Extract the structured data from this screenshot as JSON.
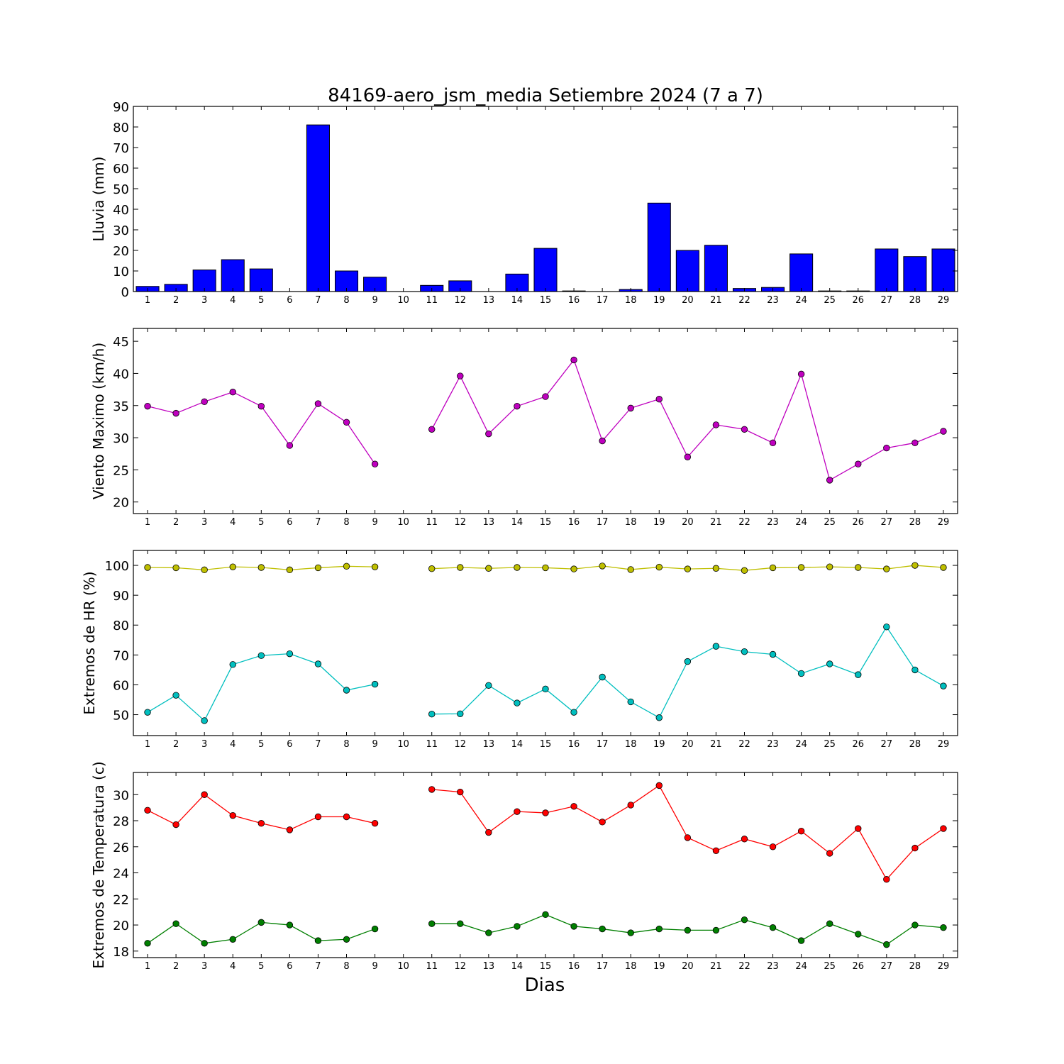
{
  "chart_data": {
    "title": "84169-aero_jsm_media Setiembre 2024  (7 a 7)",
    "xlabel": "Dias",
    "days": [
      1,
      2,
      3,
      4,
      5,
      6,
      7,
      8,
      9,
      10,
      11,
      12,
      13,
      14,
      15,
      16,
      17,
      18,
      19,
      20,
      21,
      22,
      23,
      24,
      25,
      26,
      27,
      28,
      29
    ],
    "day_labels": [
      "1",
      "2",
      "3",
      "4",
      "5",
      "6",
      "7",
      "8",
      "9",
      "10",
      "11",
      "12",
      "13",
      "14",
      "15",
      "16",
      "17",
      "18",
      "19",
      "20",
      "21",
      "22",
      "23",
      "24",
      "25",
      "26",
      "27",
      "28",
      "29"
    ],
    "panels": [
      {
        "type": "bar",
        "ylabel": "Lluvia (mm)",
        "ylim": [
          0,
          90
        ],
        "yticks": [
          0,
          10,
          20,
          30,
          40,
          50,
          60,
          70,
          80,
          90
        ],
        "series": [
          {
            "color": "#0000ff",
            "values": [
              2.5,
              3.5,
              10.5,
              15.5,
              11,
              0,
              81,
              10,
              7,
              0,
              3,
              5.2,
              0,
              8.5,
              21,
              0.3,
              0,
              1,
              43,
              20,
              22.5,
              1.5,
              2,
              18.3,
              0.3,
              0.3,
              20.7,
              17,
              20.7
            ]
          }
        ]
      },
      {
        "type": "line",
        "ylabel": "Viento Maximo (km/h)",
        "ylim": [
          18.2,
          47
        ],
        "yticks": [
          20,
          25,
          30,
          35,
          40,
          45
        ],
        "series": [
          {
            "color": "#bf00bf",
            "values": [
              34.9,
              33.8,
              35.6,
              37.1,
              34.9,
              28.8,
              35.3,
              32.4,
              25.9,
              null,
              31.3,
              39.6,
              30.6,
              34.9,
              36.4,
              42.1,
              29.5,
              34.6,
              36.0,
              27.0,
              32.0,
              31.3,
              29.2,
              39.9,
              23.4,
              25.9,
              28.4,
              29.2,
              31.0
            ]
          }
        ]
      },
      {
        "type": "line",
        "ylabel": "Extremos de HR (%)",
        "ylim": [
          43,
          105
        ],
        "yticks": [
          50,
          60,
          70,
          80,
          90,
          100
        ],
        "series": [
          {
            "color": "#bfbf00",
            "values": [
              99.3,
              99.2,
              98.5,
              99.5,
              99.3,
              98.5,
              99.2,
              99.7,
              99.5,
              null,
              98.9,
              99.3,
              99.0,
              99.3,
              99.2,
              98.8,
              99.8,
              98.6,
              99.4,
              98.8,
              99.0,
              98.3,
              99.2,
              99.3,
              99.5,
              99.3,
              98.8,
              100.0,
              99.3
            ]
          },
          {
            "color": "#00bfbf",
            "values": [
              50.8,
              56.5,
              48.0,
              66.8,
              69.8,
              70.4,
              67.0,
              58.2,
              60.2,
              null,
              50.2,
              50.3,
              59.8,
              53.9,
              58.6,
              50.8,
              62.6,
              54.3,
              49.0,
              67.8,
              72.9,
              71.1,
              70.2,
              63.8,
              67.0,
              63.4,
              79.4,
              65.0,
              59.6
            ]
          }
        ]
      },
      {
        "type": "line",
        "ylabel": "Extremos de Temperatura (c)",
        "ylim": [
          17.5,
          31.7
        ],
        "yticks": [
          18,
          20,
          22,
          24,
          26,
          28,
          30
        ],
        "series": [
          {
            "color": "#ff0000",
            "values": [
              28.8,
              27.7,
              30.0,
              28.4,
              27.8,
              27.3,
              28.3,
              28.3,
              27.8,
              null,
              30.4,
              30.2,
              27.1,
              28.7,
              28.6,
              29.1,
              27.9,
              29.2,
              30.7,
              26.7,
              25.7,
              26.6,
              26.0,
              27.2,
              25.5,
              27.4,
              23.5,
              25.9,
              27.4
            ]
          },
          {
            "color": "#007f00",
            "values": [
              18.6,
              20.1,
              18.6,
              18.9,
              20.2,
              20.0,
              18.8,
              18.9,
              19.7,
              null,
              20.1,
              20.1,
              19.4,
              19.9,
              20.8,
              19.9,
              19.7,
              19.4,
              19.7,
              19.6,
              19.6,
              20.4,
              19.8,
              18.8,
              20.1,
              19.3,
              18.5,
              20.0,
              19.8
            ]
          }
        ]
      }
    ]
  }
}
